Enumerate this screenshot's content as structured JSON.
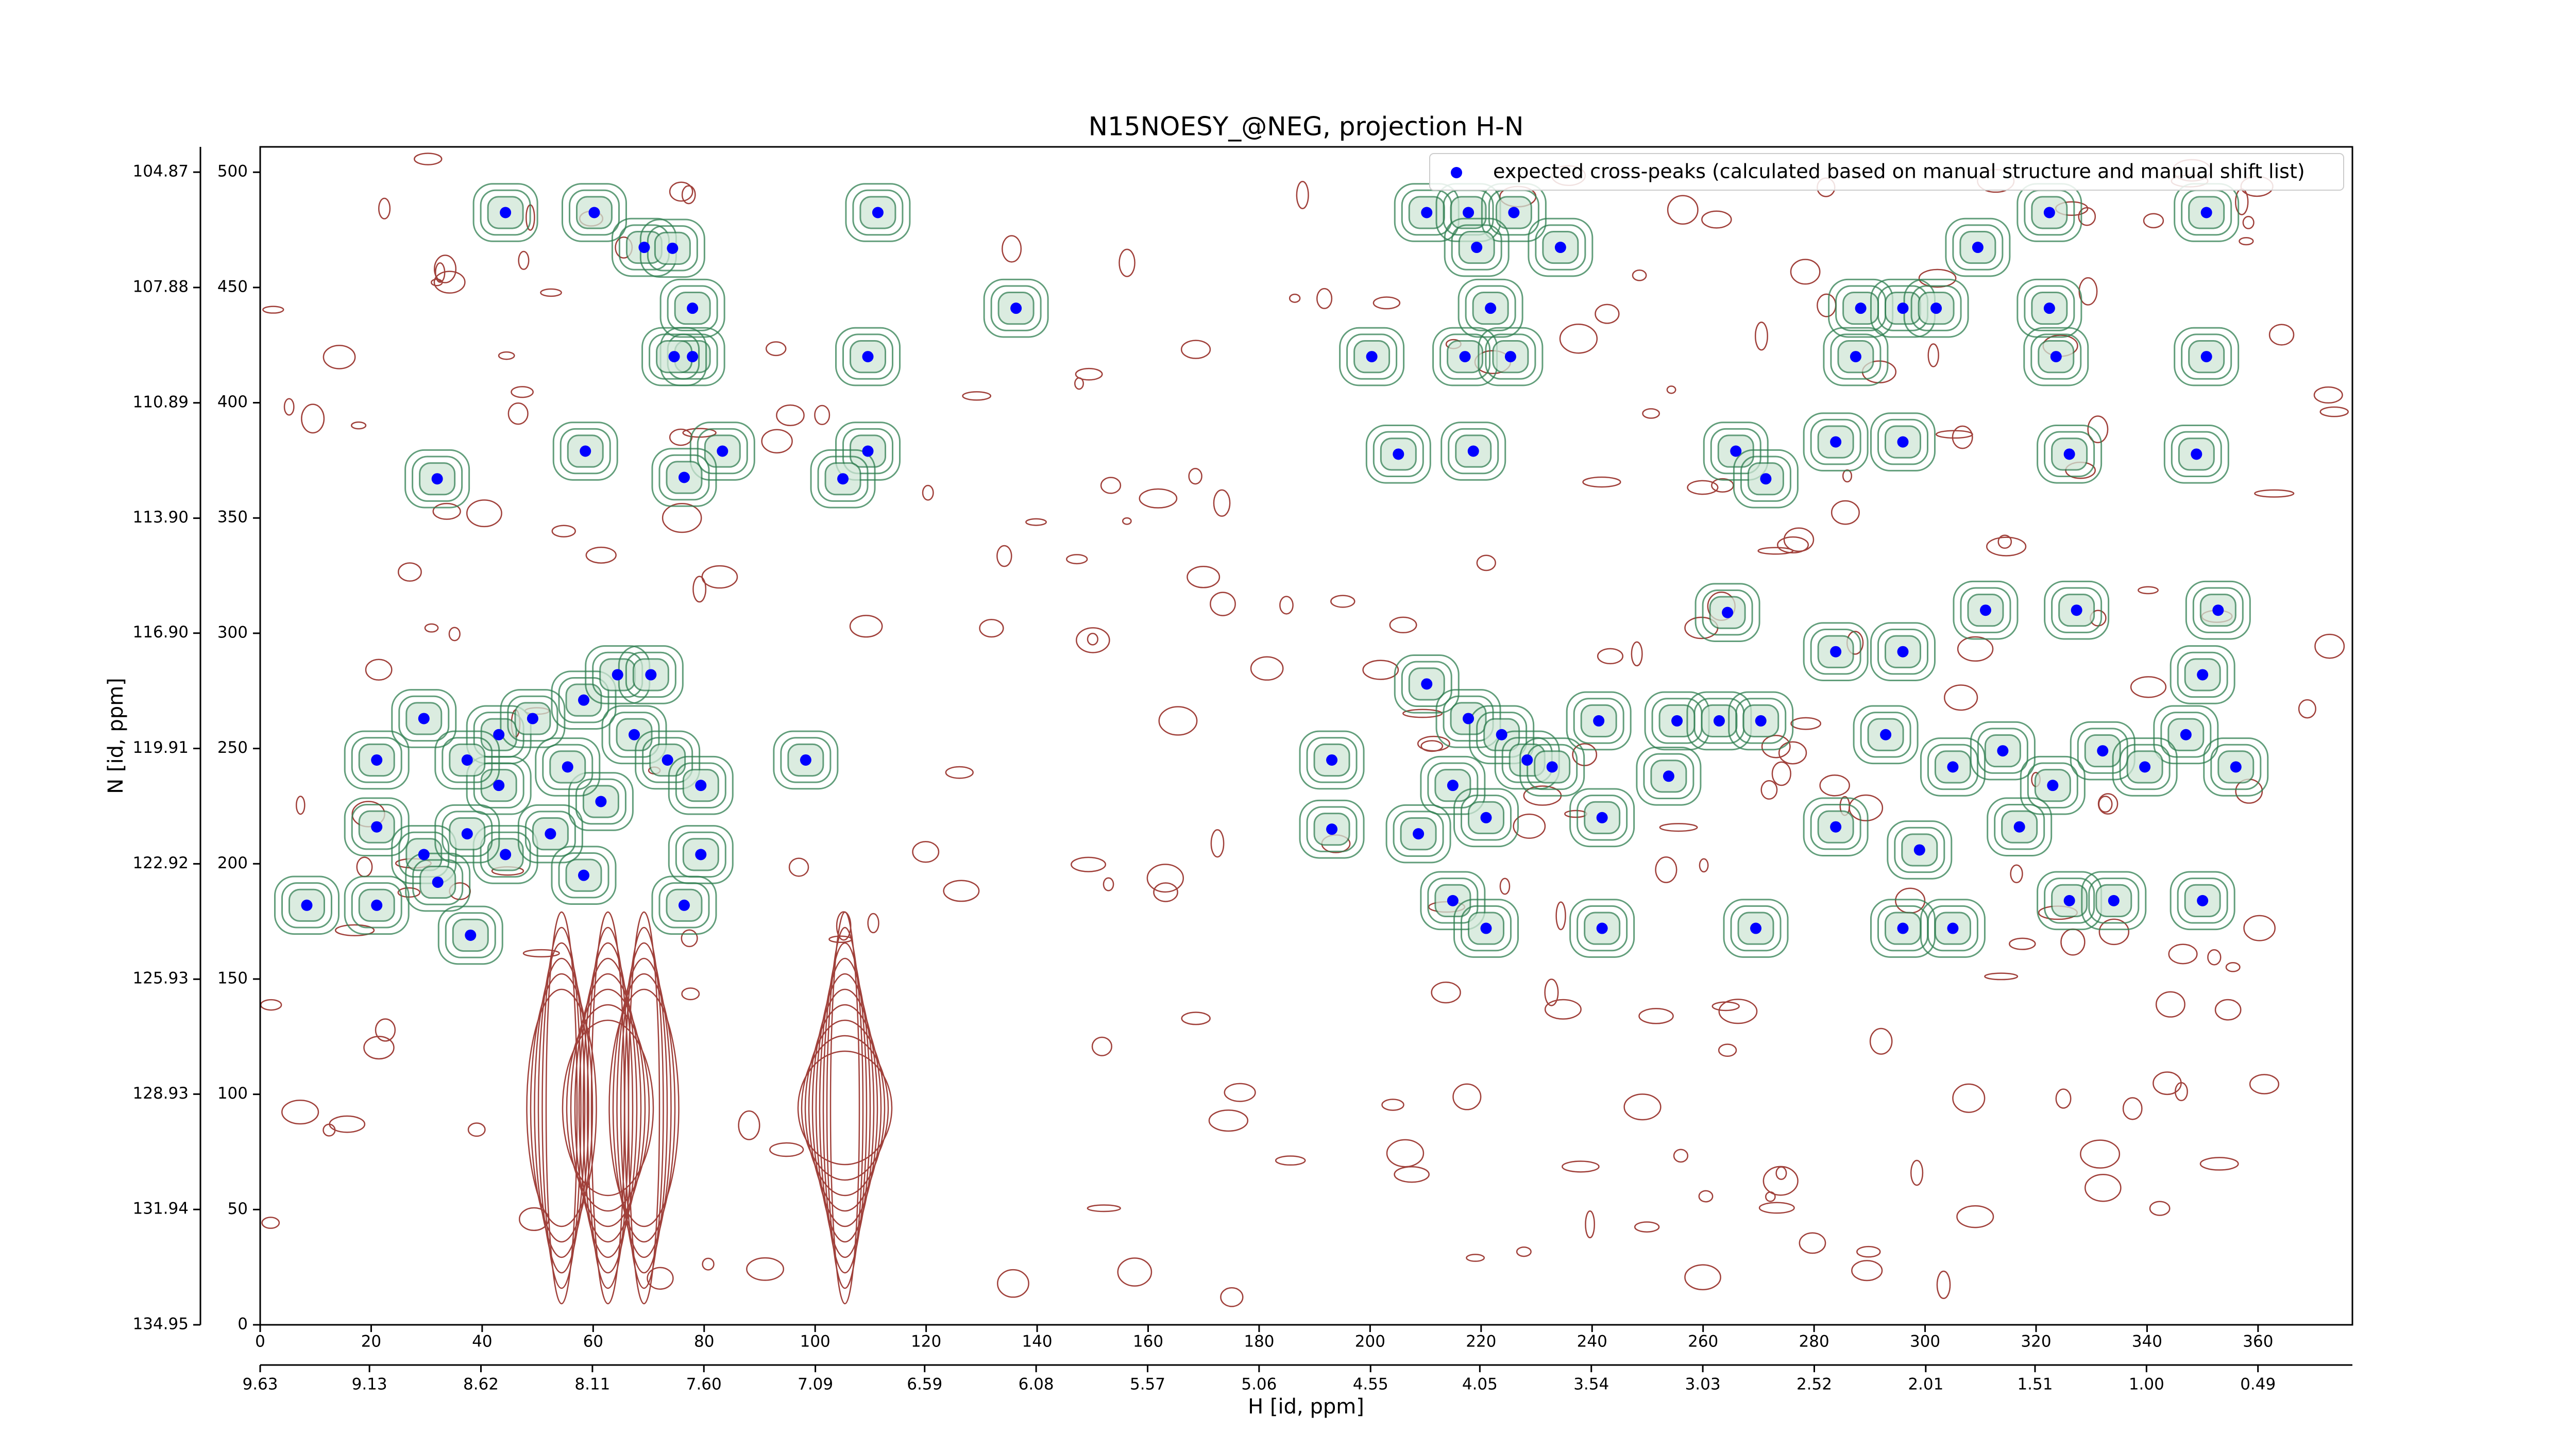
{
  "chart_data": {
    "type": "scatter",
    "title": "N15NOESY_@NEG, projection H-N",
    "x_label": "H [id, ppm]",
    "y_label": "N [id, ppm]",
    "xlim": [
      0,
      377
    ],
    "ylim": [
      0,
      511
    ],
    "xticks": [
      0,
      20,
      40,
      60,
      80,
      100,
      120,
      140,
      160,
      180,
      200,
      220,
      240,
      260,
      280,
      300,
      320,
      340,
      360
    ],
    "yticks": [
      0,
      50,
      100,
      150,
      200,
      250,
      300,
      350,
      400,
      450,
      500
    ],
    "x2lim": [
      9.63,
      0.058
    ],
    "x2ticks": [
      9.63,
      9.13,
      8.62,
      8.11,
      {
        "value": 7.6,
        "label": "7.60"
      },
      7.09,
      6.59,
      6.08,
      5.57,
      5.06,
      4.55,
      4.05,
      3.54,
      3.03,
      2.52,
      2.01,
      1.51,
      {
        "value": 1.0,
        "label": "1.00"
      },
      0.49
    ],
    "y2lim": [
      134.95,
      104.21
    ],
    "y2ticks": [
      134.95,
      131.94,
      128.93,
      125.93,
      122.92,
      119.91,
      {
        "value": 116.9,
        "label": "116.90"
      },
      {
        "value": 113.9,
        "label": "113.90"
      },
      110.89,
      107.88,
      104.87
    ],
    "legend": "upper right",
    "series": [
      {
        "name": "expected cross-peaks (calculated based on manual structure and manual shift list)",
        "color": "#0000ff",
        "x": [
          44.2,
          60.2,
          69.2,
          74.3,
          77.9,
          77.9,
          74.6,
          136.2,
          58.6,
          83.3,
          76.4,
          31.9,
          109.5,
          105,
          109.5,
          111.3,
          21,
          21,
          29.5,
          29.5,
          32,
          21,
          37.9,
          44.2,
          43,
          49.1,
          58.3,
          64.4,
          70.4,
          67.4,
          73.4,
          79.4,
          79.4,
          76.4,
          61.4,
          52.3,
          58.3,
          43,
          37.3,
          55.4,
          37.3,
          98.3,
          210.2,
          217.7,
          225.9,
          219.2,
          234.3,
          221.7,
          200.3,
          217.1,
          225.3,
          205.1,
          218.6,
          288.4,
          296,
          302,
          309.5,
          322.4,
          322.4,
          323.6,
          350.7,
          350.7,
          287.5,
          265.9,
          271.3,
          283.9,
          296,
          326,
          348.9,
          193.1,
          193.1,
          210.2,
          217.7,
          223.7,
          228.3,
          214.9,
          220.9,
          208.7,
          214.9,
          220.9,
          232.8,
          241.8,
          241.2,
          255.3,
          262.9,
          270.4,
          253.8,
          264.4,
          269.5,
          283.9,
          296,
          310.9,
          327.3,
          352.8,
          292.9,
          305,
          314,
          323,
          332,
          283.9,
          299,
          317,
          326,
          334,
          296,
          305,
          350,
          356,
          347,
          339.6,
          350,
          241.8,
          8.4
        ],
        "values": [
          482.5,
          482.5,
          467.4,
          467,
          441,
          420,
          420,
          441,
          379,
          379,
          367.6,
          367,
          379,
          367,
          420,
          482.5,
          245,
          216,
          263,
          204,
          192,
          182,
          169,
          204,
          256,
          263,
          271,
          282,
          282,
          256,
          245,
          234,
          204,
          182,
          227,
          213,
          195,
          234,
          213,
          242,
          245,
          245,
          482.5,
          482.5,
          482.5,
          467.4,
          467.4,
          441,
          420,
          420,
          420,
          377.7,
          379,
          441,
          441,
          441,
          467.4,
          482.5,
          441,
          420,
          482.5,
          420,
          420,
          379,
          367,
          383,
          383,
          377.7,
          377.7,
          245,
          215,
          278,
          263,
          256,
          245,
          234,
          220,
          213,
          184,
          172,
          242,
          220,
          262,
          262,
          262,
          262,
          238,
          309,
          172,
          292,
          292,
          310,
          310,
          310,
          256,
          242,
          249,
          234,
          249,
          216,
          206,
          216,
          184,
          184,
          172,
          172,
          184,
          242,
          256,
          242,
          282,
          172,
          182
        ]
      }
    ]
  }
}
